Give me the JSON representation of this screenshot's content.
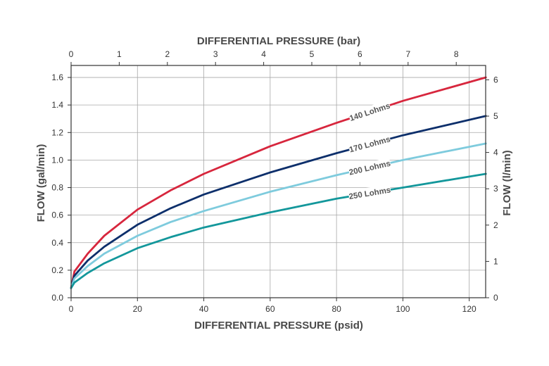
{
  "chart_data": {
    "type": "line",
    "x_top_label": "DIFFERENTIAL PRESSURE (bar)",
    "x_bottom_label": "DIFFERENTIAL PRESSURE (psid)",
    "y_left_label": "FLOW (gal/min)",
    "y_right_label": "FLOW (l/min)",
    "x_range": [
      0,
      125
    ],
    "y_range": [
      0,
      1.68
    ],
    "x_ticks": [
      0,
      20,
      40,
      60,
      80,
      100,
      120
    ],
    "y_ticks": [
      "0.0",
      "0.2",
      "0.4",
      "0.6",
      "0.8",
      "1.0",
      "1.2",
      "1.4",
      "1.6"
    ],
    "x_top_ticks": [
      "0",
      "1",
      "2",
      "3",
      "4",
      "5",
      "6",
      "7",
      "8"
    ],
    "y_right_ticks": [
      "0",
      "1",
      "2",
      "3",
      "4",
      "5",
      "6"
    ],
    "grid": true,
    "series": [
      {
        "name": "140 Lohms",
        "color": "#d7263d",
        "x": [
          0,
          1,
          5,
          10,
          20,
          30,
          40,
          60,
          80,
          100,
          125
        ],
        "y": [
          0.07,
          0.19,
          0.32,
          0.45,
          0.64,
          0.78,
          0.9,
          1.1,
          1.27,
          1.43,
          1.6
        ]
      },
      {
        "name": "170 Lohms",
        "color": "#0d2f6b",
        "x": [
          0,
          1,
          5,
          10,
          20,
          30,
          40,
          60,
          80,
          100,
          125
        ],
        "y": [
          0.07,
          0.16,
          0.27,
          0.37,
          0.53,
          0.65,
          0.75,
          0.91,
          1.05,
          1.18,
          1.32
        ]
      },
      {
        "name": "200 Lohms",
        "color": "#7ecbdd",
        "x": [
          0,
          1,
          5,
          10,
          20,
          30,
          40,
          60,
          80,
          100,
          125
        ],
        "y": [
          0.07,
          0.14,
          0.23,
          0.32,
          0.45,
          0.55,
          0.63,
          0.77,
          0.89,
          1.0,
          1.12
        ]
      },
      {
        "name": "250 Lohms",
        "color": "#13979b",
        "x": [
          0,
          1,
          5,
          10,
          20,
          30,
          40,
          60,
          80,
          100,
          125
        ],
        "y": [
          0.07,
          0.11,
          0.18,
          0.25,
          0.36,
          0.44,
          0.51,
          0.62,
          0.72,
          0.8,
          0.9
        ]
      }
    ],
    "series_label_x": 90
  }
}
